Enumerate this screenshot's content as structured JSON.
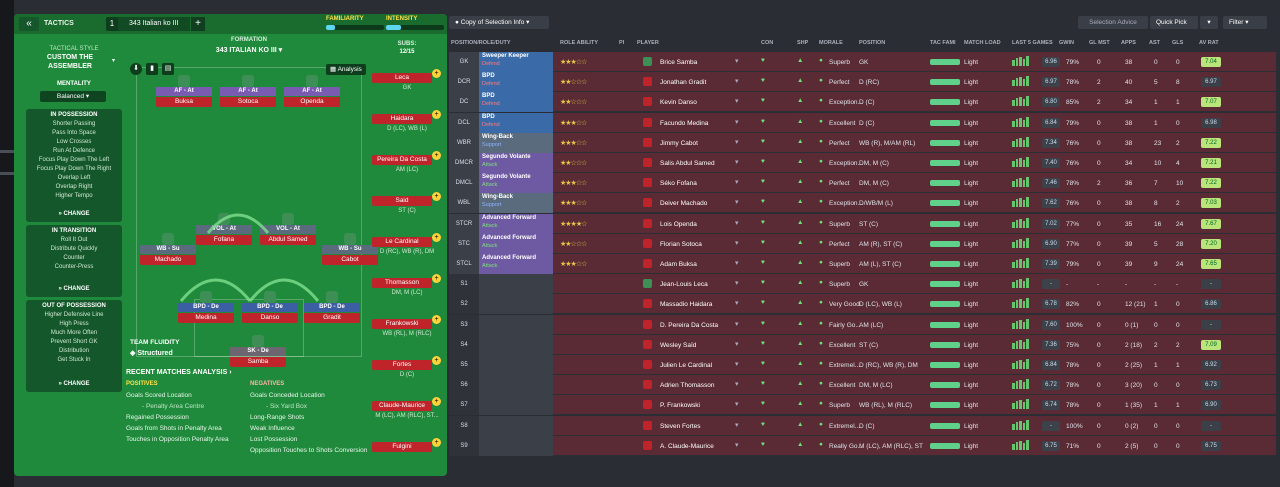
{
  "header": {
    "back": "«",
    "title": "TACTICS",
    "tab_num": "1",
    "tab_name": "343 Italian ko III",
    "plus": "+",
    "familiarity": "FAMILIARITY",
    "intensity": "INTENSITY",
    "familiarity_val": 0.15,
    "intensity_val": 0.25
  },
  "side": {
    "tactical_style": "TACTICAL STYLE",
    "style_name": "CUSTOM THE ASSEMBLER",
    "mentality": "MENTALITY",
    "mentality_val": "Balanced",
    "in_possession": "IN POSSESSION",
    "in_possession_items": [
      "Shorter Passing",
      "Pass Into Space",
      "Low Crosses",
      "Run At Defence",
      "Focus Play Down The Left",
      "Focus Play Down The Right",
      "Overlap Left",
      "Overlap Right",
      "Higher Tempo"
    ],
    "in_transition": "IN TRANSITION",
    "in_transition_items": [
      "Roll It Out",
      "Distribute Quickly",
      "Counter",
      "Counter-Press"
    ],
    "out_possession": "OUT OF POSSESSION",
    "out_possession_items": [
      "Higher Defensive Line",
      "High Press",
      "Much More Often",
      "Prevent Short GK",
      "Distribution",
      "Get Stuck In"
    ],
    "change": "CHANGE"
  },
  "pitch": {
    "formation_label": "FORMATION",
    "formation_name": "343 ITALIAN KO III",
    "subs_label": "SUBS:",
    "subs_val": "12/15",
    "analysis": "Analysis",
    "team_fluidity": "TEAM FLUIDITY",
    "fluidity_val": "Structured",
    "players": [
      {
        "tag": "AF - At",
        "name": "Buksa",
        "cls": "att"
      },
      {
        "tag": "AF - At",
        "name": "Sotoca",
        "cls": "att"
      },
      {
        "tag": "AF - At",
        "name": "Openda",
        "cls": "att"
      },
      {
        "tag": "VOL - At",
        "name": "Fofana",
        "cls": "sup"
      },
      {
        "tag": "VOL - At",
        "name": "Abdul Samed",
        "cls": "sup"
      },
      {
        "tag": "WB - Su",
        "name": "Machado",
        "cls": "sup"
      },
      {
        "tag": "WB - Su",
        "name": "Cabot",
        "cls": "sup"
      },
      {
        "tag": "BPD - De",
        "name": "Medina",
        "cls": "def"
      },
      {
        "tag": "BPD - De",
        "name": "Danso",
        "cls": "def"
      },
      {
        "tag": "BPD - De",
        "name": "Gradit",
        "cls": "def"
      },
      {
        "tag": "SK - De",
        "name": "Samba",
        "cls": "gk"
      }
    ]
  },
  "subs": [
    {
      "name": "Leca",
      "pos": "GK"
    },
    {
      "name": "Haidara",
      "pos": "D (LC), WB (L)"
    },
    {
      "name": "Pereira Da Costa",
      "pos": "AM (LC)"
    },
    {
      "name": "Said",
      "pos": "ST (C)"
    },
    {
      "name": "Le Cardinal",
      "pos": "D (RC), WB (R), DM"
    },
    {
      "name": "Thomasson",
      "pos": "DM, M (LC)"
    },
    {
      "name": "Frankowski",
      "pos": "WB (RL), M (RLC)"
    },
    {
      "name": "Fortes",
      "pos": "D (C)"
    },
    {
      "name": "Claude-Maurice",
      "pos": "M (LC), AM (RLC), ST..."
    },
    {
      "name": "Fulgini",
      "pos": ""
    }
  ],
  "recent": {
    "title": "RECENT MATCHES ANALYSIS",
    "positives": "POSITIVES",
    "negatives": "NEGATIVES",
    "pos_items": [
      "Goals Scored Location",
      "- Penalty Area Centre",
      "Regained Possession",
      "Goals from Shots in Penalty Area",
      "Touches in Opposition Penalty Area"
    ],
    "neg_items": [
      "Goals Conceded Location",
      "- Six Yard Box",
      "Long-Range Shots",
      "Weak Influence",
      "Lost Possession",
      "Opposition Touches to Shots Conversion"
    ]
  },
  "right": {
    "copy_btn": "Copy of Selection Info",
    "selection_advice": "Selection Advice",
    "quick_pick": "Quick Pick",
    "filter": "Filter",
    "columns": [
      "POSITION/ROLE/DUTY",
      "ROLE ABILITY",
      "PI",
      "PLAYER",
      "CON",
      "SHP",
      "MORALE",
      "POSITION",
      "TAC FAMI",
      "MATCH LOAD",
      "LAST 5 GAMES",
      "GWIN",
      "GL MST",
      "APPS",
      "AST",
      "GLS",
      "AV RAT"
    ],
    "rows": [
      {
        "pos": "GK",
        "role": "Sweeper Keeper",
        "duty": "Defend",
        "stars": "★★★☆☆",
        "player": "Brice Samba",
        "morale": "Superb",
        "position": "GK",
        "load": "Light",
        "last": "6.96",
        "gwin": "79%",
        "glmst": "0",
        "apps": "38",
        "ast": "0",
        "gls": "0",
        "rat": "7.04",
        "bg": "#5a2b34",
        "rc": "#b9e57a"
      },
      {
        "pos": "DCR",
        "role": "BPD",
        "duty": "Defend",
        "stars": "★★☆☆☆",
        "player": "Jonathan Gradit",
        "morale": "Perfect",
        "position": "D (RC)",
        "load": "Light",
        "last": "6.97",
        "gwin": "78%",
        "glmst": "2",
        "apps": "40",
        "ast": "5",
        "gls": "8",
        "rat": "6.97",
        "bg": "#5a2b34",
        "rc": "#3b4048"
      },
      {
        "pos": "DC",
        "role": "BPD",
        "duty": "Defend",
        "stars": "★★☆☆☆",
        "player": "Kevin Danso",
        "morale": "Exception...",
        "position": "D (C)",
        "load": "Light",
        "last": "6.80",
        "gwin": "85%",
        "glmst": "2",
        "apps": "34",
        "ast": "1",
        "gls": "1",
        "rat": "7.07",
        "bg": "#5a2b34",
        "rc": "#b9e57a"
      },
      {
        "pos": "DCL",
        "role": "BPD",
        "duty": "Defend",
        "stars": "★★★☆☆",
        "player": "Facundo Medina",
        "morale": "Excellent",
        "position": "D (C)",
        "load": "Light",
        "last": "6.84",
        "gwin": "79%",
        "glmst": "0",
        "apps": "38",
        "ast": "1",
        "gls": "0",
        "rat": "6.98",
        "bg": "#5a2b34",
        "rc": "#3b4048"
      },
      {
        "pos": "WBR",
        "role": "Wing-Back",
        "duty": "Support",
        "stars": "★★★☆☆",
        "player": "Jimmy Cabot",
        "morale": "Perfect",
        "position": "WB (R), M/AM (RL)",
        "load": "Light",
        "last": "7.34",
        "gwin": "76%",
        "glmst": "0",
        "apps": "38",
        "ast": "23",
        "gls": "2",
        "rat": "7.22",
        "bg": "#5a2b34",
        "rc": "#b9e57a"
      },
      {
        "pos": "DMCR",
        "role": "Segundo Volante",
        "duty": "Attack",
        "stars": "★★☆☆☆",
        "player": "Salis Abdul Samed",
        "morale": "Exception...",
        "position": "DM, M (C)",
        "load": "Light",
        "last": "7.40",
        "gwin": "76%",
        "glmst": "0",
        "apps": "34",
        "ast": "10",
        "gls": "4",
        "rat": "7.21",
        "bg": "#5a2b34",
        "rc": "#b9e57a"
      },
      {
        "pos": "DMCL",
        "role": "Segundo Volante",
        "duty": "Attack",
        "stars": "★★★☆☆",
        "player": "Séko Fofana",
        "morale": "Perfect",
        "position": "DM, M (C)",
        "load": "Light",
        "last": "7.46",
        "gwin": "78%",
        "glmst": "2",
        "apps": "36",
        "ast": "7",
        "gls": "10",
        "rat": "7.22",
        "bg": "#5a2b34",
        "rc": "#b9e57a"
      },
      {
        "pos": "WBL",
        "role": "Wing-Back",
        "duty": "Support",
        "stars": "★★★☆☆",
        "player": "Deiver Machado",
        "morale": "Exception...",
        "position": "D/WB/M (L)",
        "load": "Light",
        "last": "7.62",
        "gwin": "76%",
        "glmst": "0",
        "apps": "38",
        "ast": "8",
        "gls": "2",
        "rat": "7.03",
        "bg": "#5a2b34",
        "rc": "#b9e57a"
      },
      {
        "pos": "STCR",
        "role": "Advanced Forward",
        "duty": "Attack",
        "stars": "★★★★☆",
        "player": "Lois Openda",
        "morale": "Superb",
        "position": "ST (C)",
        "load": "Light",
        "last": "7.02",
        "gwin": "77%",
        "glmst": "0",
        "apps": "35",
        "ast": "16",
        "gls": "24",
        "rat": "7.67",
        "bg": "#5a2b34",
        "rc": "#b9e57a"
      },
      {
        "pos": "STC",
        "role": "Advanced Forward",
        "duty": "Attack",
        "stars": "★★☆☆☆",
        "player": "Florian Sotoca",
        "morale": "Perfect",
        "position": "AM (R), ST (C)",
        "load": "Light",
        "last": "6.90",
        "gwin": "77%",
        "glmst": "0",
        "apps": "39",
        "ast": "5",
        "gls": "28",
        "rat": "7.20",
        "bg": "#5a2b34",
        "rc": "#b9e57a"
      },
      {
        "pos": "STCL",
        "role": "Advanced Forward",
        "duty": "Attack",
        "stars": "★★★☆☆",
        "player": "Adam Buksa",
        "morale": "Superb",
        "position": "AM (L), ST (C)",
        "load": "Light",
        "last": "7.39",
        "gwin": "79%",
        "glmst": "0",
        "apps": "39",
        "ast": "9",
        "gls": "24",
        "rat": "7.65",
        "bg": "#5a2b34",
        "rc": "#b9e57a"
      },
      {
        "pos": "S1",
        "role": "",
        "duty": "",
        "stars": "",
        "player": "Jean-Louis Leca",
        "morale": "Superb",
        "position": "GK",
        "load": "Light",
        "last": "-",
        "gwin": "-",
        "glmst": "-",
        "apps": "-",
        "ast": "-",
        "gls": "-",
        "rat": "-",
        "bg": "#5a2b34",
        "rc": "#3b4048"
      },
      {
        "pos": "S2",
        "role": "",
        "duty": "",
        "stars": "",
        "player": "Massadio Haidara",
        "morale": "Very Good",
        "position": "D (LC), WB (L)",
        "load": "Light",
        "last": "6.78",
        "gwin": "82%",
        "glmst": "0",
        "apps": "12 (21)",
        "ast": "1",
        "gls": "0",
        "rat": "6.86",
        "bg": "#5a2b34",
        "rc": "#3b4048"
      },
      {
        "pos": "S3",
        "role": "",
        "duty": "",
        "stars": "",
        "player": "D. Pereira Da Costa",
        "morale": "Fairly Go...",
        "position": "AM (LC)",
        "load": "Light",
        "last": "7.60",
        "gwin": "100%",
        "glmst": "0",
        "apps": "0 (1)",
        "ast": "0",
        "gls": "0",
        "rat": "-",
        "bg": "#5a2b34",
        "rc": "#3b4048"
      },
      {
        "pos": "S4",
        "role": "",
        "duty": "",
        "stars": "",
        "player": "Wesley Saïd",
        "morale": "Excellent",
        "position": "ST (C)",
        "load": "Light",
        "last": "7.36",
        "gwin": "75%",
        "glmst": "0",
        "apps": "2 (18)",
        "ast": "2",
        "gls": "2",
        "rat": "7.09",
        "bg": "#5a2b34",
        "rc": "#b9e57a"
      },
      {
        "pos": "S5",
        "role": "",
        "duty": "",
        "stars": "",
        "player": "Julien Le Cardinal",
        "morale": "Extremel...",
        "position": "D (RC), WB (R), DM",
        "load": "Light",
        "last": "6.84",
        "gwin": "78%",
        "glmst": "0",
        "apps": "2 (25)",
        "ast": "1",
        "gls": "1",
        "rat": "6.92",
        "bg": "#5a2b34",
        "rc": "#3b4048"
      },
      {
        "pos": "S6",
        "role": "",
        "duty": "",
        "stars": "",
        "player": "Adrien Thomasson",
        "morale": "Excellent",
        "position": "DM, M (LC)",
        "load": "Light",
        "last": "6.72",
        "gwin": "78%",
        "glmst": "0",
        "apps": "3 (20)",
        "ast": "0",
        "gls": "0",
        "rat": "6.73",
        "bg": "#5a2b34",
        "rc": "#3b4048"
      },
      {
        "pos": "S7",
        "role": "",
        "duty": "",
        "stars": "",
        "player": "P. Frankowski",
        "morale": "Superb",
        "position": "WB (RL), M (RLC)",
        "load": "Light",
        "last": "6.74",
        "gwin": "78%",
        "glmst": "0",
        "apps": "1 (35)",
        "ast": "1",
        "gls": "1",
        "rat": "6.90",
        "bg": "#5a2b34",
        "rc": "#3b4048"
      },
      {
        "pos": "S8",
        "role": "",
        "duty": "",
        "stars": "",
        "player": "Steven Fortes",
        "morale": "Extremel...",
        "position": "D (C)",
        "load": "Light",
        "last": "-",
        "gwin": "100%",
        "glmst": "0",
        "apps": "0 (2)",
        "ast": "0",
        "gls": "0",
        "rat": "-",
        "bg": "#5a2b34",
        "rc": "#3b4048"
      },
      {
        "pos": "S9",
        "role": "",
        "duty": "",
        "stars": "",
        "player": "A. Claude-Maurice",
        "morale": "Really Go...",
        "position": "M (LC), AM (RLC), ST",
        "load": "Light",
        "last": "6.75",
        "gwin": "71%",
        "glmst": "0",
        "apps": "2 (5)",
        "ast": "0",
        "gls": "0",
        "rat": "6.75",
        "bg": "#5a2b34",
        "rc": "#3b4048"
      }
    ]
  }
}
